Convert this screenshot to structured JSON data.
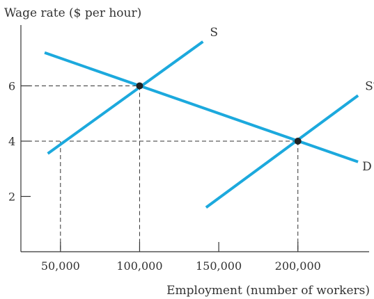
{
  "chart_data": {
    "type": "line",
    "title": "",
    "ylabel": "Wage rate ($ per hour)",
    "xlabel": "Employment (number of workers)",
    "xlim": [
      25000,
      245000
    ],
    "ylim": [
      0,
      8.2
    ],
    "x_ticks": [
      50000,
      100000,
      150000,
      200000
    ],
    "x_tick_labels": [
      "50,000",
      "100,000",
      "150,000",
      "200,000"
    ],
    "y_ticks": [
      2,
      4,
      6
    ],
    "y_tick_labels": [
      "2",
      "4",
      "6"
    ],
    "grid": false,
    "series": [
      {
        "name": "S",
        "x": [
          42000,
          140000
        ],
        "y": [
          3.55,
          7.6
        ]
      },
      {
        "name": "D",
        "x": [
          40000,
          238000
        ],
        "y": [
          7.2,
          3.25
        ]
      },
      {
        "name": "S′",
        "x": [
          142000,
          238000
        ],
        "y": [
          1.6,
          5.65
        ]
      }
    ],
    "points": [
      {
        "x": 100000,
        "y": 6
      },
      {
        "x": 200000,
        "y": 4
      }
    ],
    "guides": [
      {
        "x": 100000,
        "y": 6
      },
      {
        "x": 200000,
        "y": 4
      },
      {
        "x": 50000,
        "y": 4
      }
    ],
    "colors": {
      "line": "#1ca9dd",
      "axis": "#333333",
      "point": "#222222",
      "guide": "#333333"
    }
  }
}
